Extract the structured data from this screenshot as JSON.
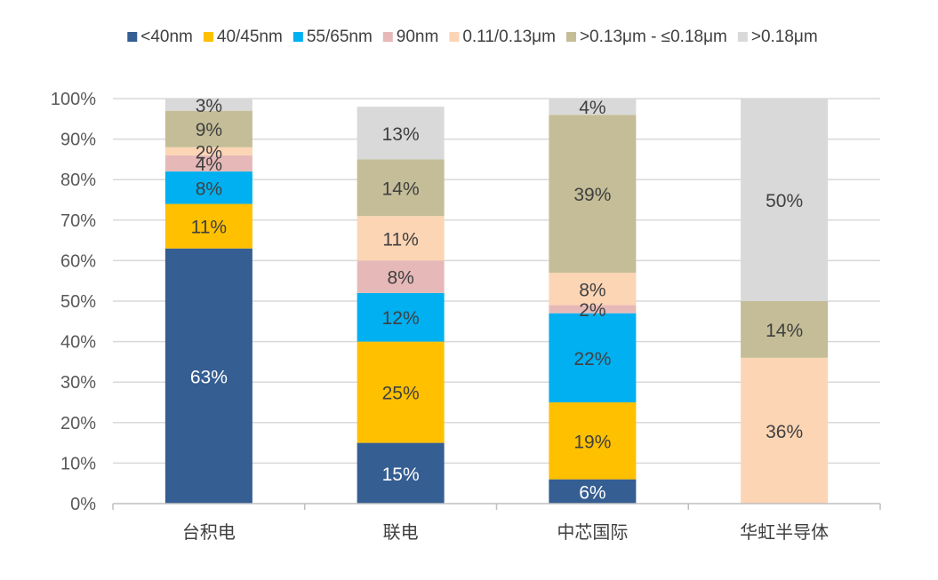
{
  "chart_data": {
    "type": "bar",
    "stacked": true,
    "percent": true,
    "categories": [
      "台积电",
      "联电",
      "中芯国际",
      "华虹半导体"
    ],
    "series": [
      {
        "name": "<40nm",
        "values": [
          63,
          15,
          6,
          0
        ],
        "color": "#355E92"
      },
      {
        "name": "40/45nm",
        "values": [
          11,
          25,
          19,
          0
        ],
        "color": "#FFC000"
      },
      {
        "name": "55/65nm",
        "values": [
          8,
          12,
          22,
          0
        ],
        "color": "#00B0F0"
      },
      {
        "name": "90nm",
        "values": [
          4,
          8,
          2,
          0
        ],
        "color": "#E6B9B8"
      },
      {
        "name": "0.11/0.13μm",
        "values": [
          2,
          11,
          8,
          36
        ],
        "color": "#FCD5B5"
      },
      {
        "name": ">0.13μm - ≤0.18μm",
        "values": [
          9,
          14,
          39,
          14
        ],
        "color": "#C4BD97"
      },
      {
        "name": ">0.18μm",
        "values": [
          3,
          13,
          4,
          50
        ],
        "color": "#D9D9D9"
      }
    ],
    "ylim": [
      0,
      100
    ],
    "yticks": [
      "0%",
      "10%",
      "20%",
      "30%",
      "40%",
      "50%",
      "60%",
      "70%",
      "80%",
      "90%",
      "100%"
    ],
    "grid": true,
    "legend_position": "top",
    "label_colors": {
      "dark_bg": "#FFFFFF",
      "light_bg": "#404040"
    }
  }
}
